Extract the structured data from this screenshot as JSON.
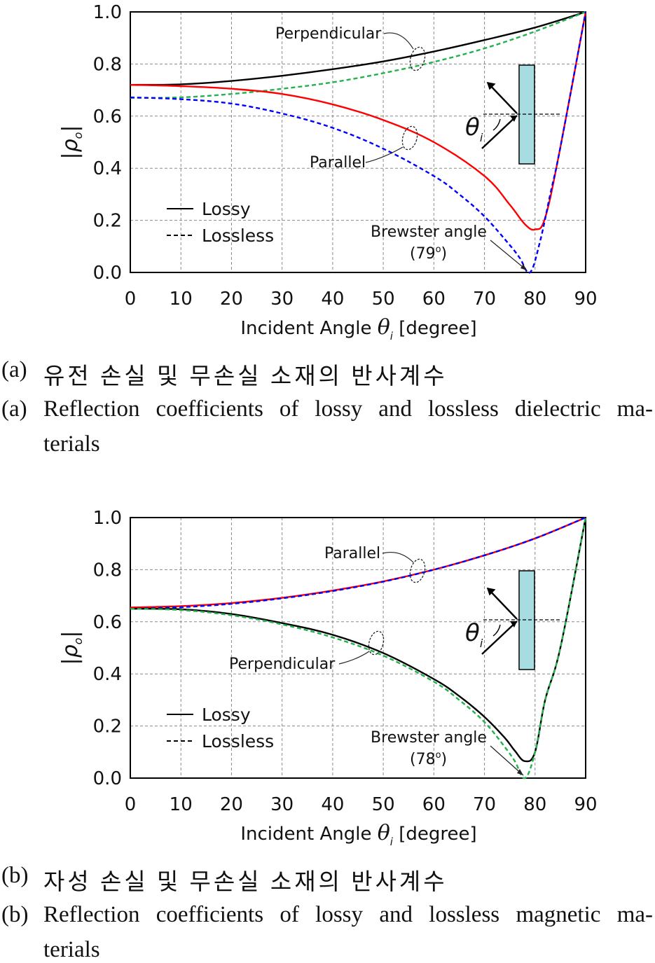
{
  "chart_data": [
    {
      "type": "line",
      "xlabel_prefix": "Incident Angle",
      "xlabel_symbol": "θ",
      "xlabel_sub": "i",
      "xlabel_suffix": "[degree]",
      "ylabel_symbol": "ρ",
      "ylabel_sub": "o",
      "xlim": [
        0,
        90
      ],
      "ylim": [
        0,
        1
      ],
      "xticks": [
        "0",
        "10",
        "20",
        "30",
        "40",
        "50",
        "60",
        "70",
        "80",
        "90"
      ],
      "yticks": [
        "0.0",
        "0.2",
        "0.4",
        "0.6",
        "0.8",
        "1.0"
      ],
      "grid": true,
      "legend": [
        {
          "label": "Lossy",
          "style": "solid"
        },
        {
          "label": "Lossless",
          "style": "dashed"
        }
      ],
      "series": [
        {
          "group": "Perpendicular",
          "style": "solid",
          "color": "#000000",
          "x": [
            0,
            10,
            20,
            30,
            40,
            50,
            60,
            70,
            80,
            90
          ],
          "y": [
            0.72,
            0.722,
            0.735,
            0.755,
            0.78,
            0.81,
            0.848,
            0.892,
            0.94,
            1.0
          ]
        },
        {
          "group": "Perpendicular",
          "style": "dashed",
          "color": "#22b14c",
          "x": [
            0,
            10,
            20,
            30,
            40,
            50,
            60,
            70,
            80,
            90
          ],
          "y": [
            0.67,
            0.672,
            0.685,
            0.705,
            0.73,
            0.765,
            0.808,
            0.86,
            0.925,
            1.0
          ]
        },
        {
          "group": "Parallel",
          "style": "solid",
          "color": "#ff0000",
          "x": [
            0,
            10,
            20,
            30,
            40,
            50,
            60,
            70,
            75,
            78,
            80,
            82,
            85,
            90
          ],
          "y": [
            0.72,
            0.715,
            0.705,
            0.685,
            0.645,
            0.585,
            0.5,
            0.37,
            0.26,
            0.185,
            0.165,
            0.21,
            0.48,
            1.0
          ]
        },
        {
          "group": "Parallel",
          "style": "dashed",
          "color": "#0000ff",
          "x": [
            0,
            10,
            20,
            30,
            40,
            50,
            60,
            65,
            70,
            75,
            77,
            79,
            81,
            83,
            85,
            90
          ],
          "y": [
            0.672,
            0.665,
            0.648,
            0.61,
            0.555,
            0.475,
            0.37,
            0.3,
            0.215,
            0.105,
            0.055,
            0.0,
            0.12,
            0.3,
            0.48,
            1.0
          ]
        }
      ],
      "annotations": [
        {
          "text": "Perpendicular",
          "target": "perpendicular"
        },
        {
          "text": "Parallel",
          "target": "parallel"
        },
        {
          "text": "Brewster angle",
          "value_text": "(79",
          "superscript": "o",
          "close": ")"
        }
      ],
      "inset_symbol": "θ",
      "inset_sub": "i"
    },
    {
      "type": "line",
      "xlabel_prefix": "Incident Angle",
      "xlabel_symbol": "θ",
      "xlabel_sub": "i",
      "xlabel_suffix": "[degree]",
      "ylabel_symbol": "ρ",
      "ylabel_sub": "o",
      "xlim": [
        0,
        90
      ],
      "ylim": [
        0,
        1
      ],
      "xticks": [
        "0",
        "10",
        "20",
        "30",
        "40",
        "50",
        "60",
        "70",
        "80",
        "90"
      ],
      "yticks": [
        "0.0",
        "0.2",
        "0.4",
        "0.6",
        "0.8",
        "1.0"
      ],
      "grid": true,
      "legend": [
        {
          "label": "Lossy",
          "style": "solid"
        },
        {
          "label": "Lossless",
          "style": "dashed"
        }
      ],
      "series": [
        {
          "group": "Parallel",
          "style": "solid",
          "color": "#ff0000",
          "x": [
            0,
            10,
            20,
            30,
            40,
            50,
            60,
            70,
            80,
            90
          ],
          "y": [
            0.655,
            0.66,
            0.672,
            0.692,
            0.72,
            0.755,
            0.8,
            0.855,
            0.92,
            1.0
          ]
        },
        {
          "group": "Parallel",
          "style": "dashed",
          "color": "#0000ff",
          "x": [
            0,
            10,
            20,
            30,
            40,
            50,
            60,
            70,
            80,
            90
          ],
          "y": [
            0.65,
            0.656,
            0.669,
            0.69,
            0.718,
            0.754,
            0.8,
            0.855,
            0.92,
            1.0
          ]
        },
        {
          "group": "Perpendicular",
          "style": "solid",
          "color": "#000000",
          "x": [
            0,
            10,
            20,
            30,
            40,
            50,
            60,
            65,
            70,
            74,
            76,
            78,
            80,
            82,
            85,
            90
          ],
          "y": [
            0.65,
            0.648,
            0.63,
            0.595,
            0.55,
            0.48,
            0.38,
            0.315,
            0.235,
            0.155,
            0.105,
            0.065,
            0.1,
            0.3,
            0.5,
            1.0
          ]
        },
        {
          "group": "Perpendicular",
          "style": "dashed",
          "color": "#22b14c",
          "x": [
            0,
            10,
            20,
            30,
            40,
            50,
            60,
            65,
            70,
            74,
            76,
            78,
            80,
            82,
            85,
            90
          ],
          "y": [
            0.65,
            0.645,
            0.625,
            0.59,
            0.54,
            0.47,
            0.37,
            0.3,
            0.215,
            0.12,
            0.065,
            0.0,
            0.1,
            0.3,
            0.5,
            1.0
          ]
        }
      ],
      "annotations": [
        {
          "text": "Parallel",
          "target": "parallel"
        },
        {
          "text": "Perpendicular",
          "target": "perpendicular"
        },
        {
          "text": "Brewster angle",
          "value_text": "(78",
          "superscript": "o",
          "close": ")"
        }
      ],
      "inset_symbol": "θ",
      "inset_sub": "i"
    }
  ],
  "captions": {
    "a_ko": "유전 손실 및 무손실 소재의 반사계수",
    "a_tag": "(a)",
    "a_en_line1": "Reflection coefficients of lossy and lossless dielectric ma-",
    "a_en_line2": "terials",
    "b_ko": "자성 손실 및 무손실 소재의 반사계수",
    "b_tag": "(b)",
    "b_en_line1": "Reflection coefficients of lossy and lossless magnetic ma-",
    "b_en_line2": "terials"
  }
}
